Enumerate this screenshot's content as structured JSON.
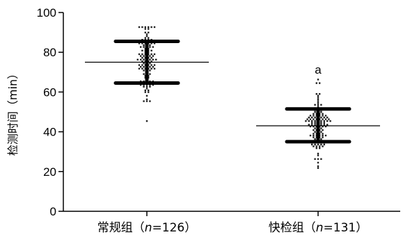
{
  "chart_data": {
    "type": "scatter",
    "title": "",
    "xlabel": "",
    "ylabel": "检测时间（min）",
    "ylim": [
      0,
      100
    ],
    "yticks": [
      "0",
      "20",
      "40",
      "60",
      "80",
      "100"
    ],
    "grid": false,
    "categories": [
      "常规组（n=126）",
      "快检组（n=131）"
    ],
    "category_parts": [
      {
        "prefix": "常规组（",
        "italic": "n",
        "suffix": "=126）"
      },
      {
        "prefix": "快检组（",
        "italic": "n",
        "suffix": "=131）"
      }
    ],
    "series": [
      {
        "n": 126,
        "mean": 75,
        "mean_plus_sd": 85.5,
        "mean_minus_sd": 64.5,
        "min": 45,
        "max": 93,
        "annotation": ""
      },
      {
        "n": 131,
        "mean": 43,
        "mean_plus_sd": 51.5,
        "mean_minus_sd": 35,
        "min": 22,
        "max": 66,
        "annotation": "a"
      }
    ]
  }
}
